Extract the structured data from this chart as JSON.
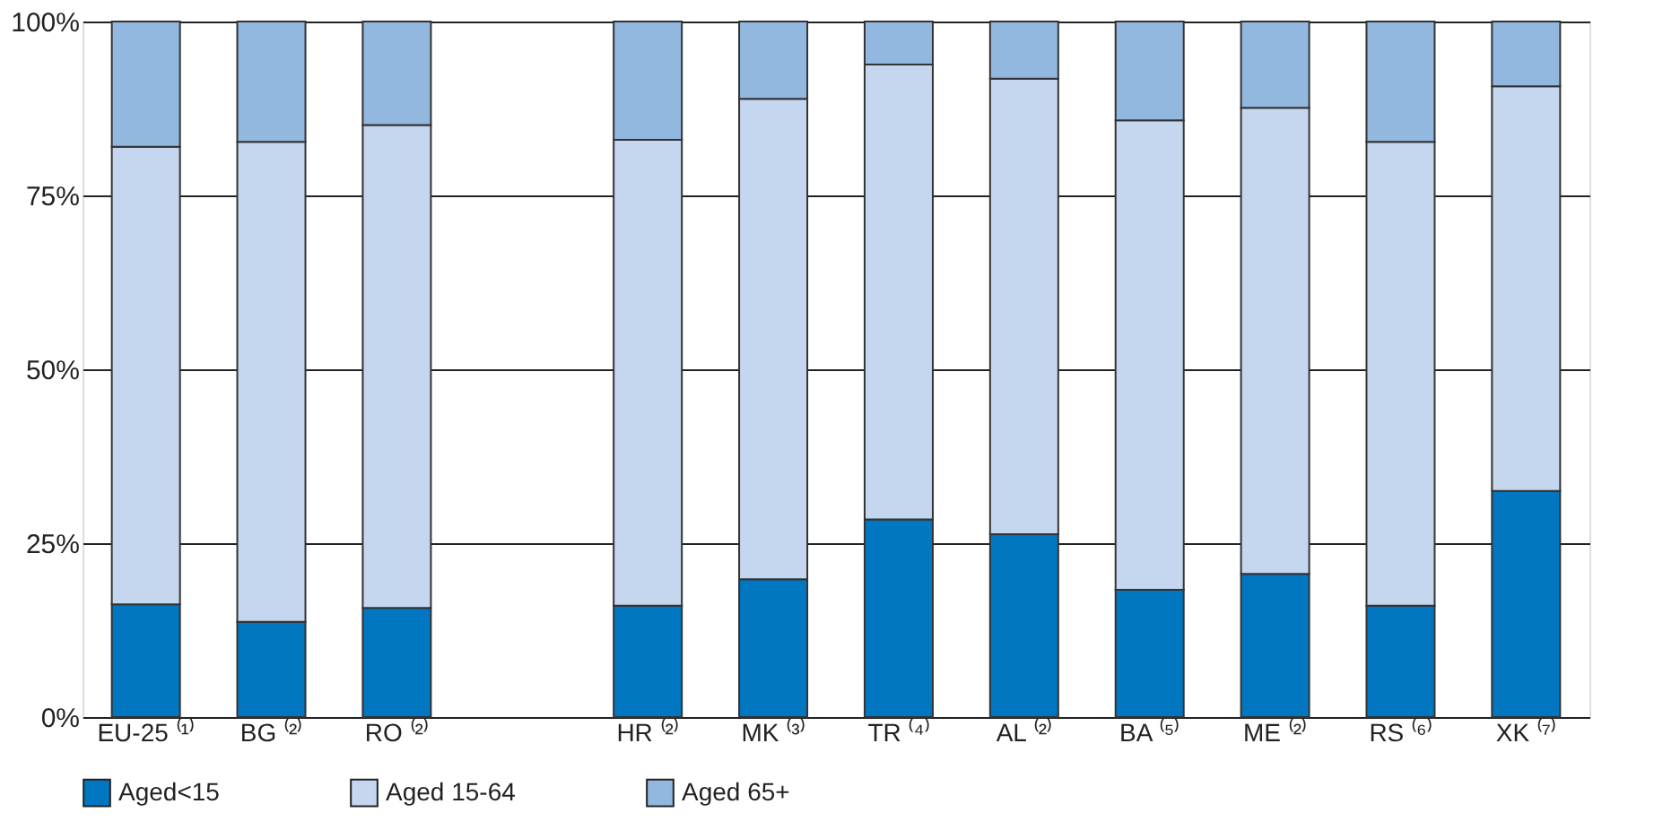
{
  "chart_data": {
    "type": "bar",
    "stacked": true,
    "categories": [
      "EU-25 ⁽¹⁾",
      "BG ⁽²⁾",
      "RO ⁽²⁾",
      null,
      "HR ⁽²⁾",
      "MK ⁽³⁾",
      "TR ⁽⁴⁾",
      "AL ⁽²⁾",
      "BA ⁽⁵⁾",
      "ME ⁽²⁾",
      "RS ⁽⁶⁾",
      "XK ⁽⁷⁾"
    ],
    "series": [
      {
        "name": "Aged<15",
        "color": "#0077c0",
        "values": [
          16.2,
          13.7,
          15.7,
          null,
          16.0,
          19.8,
          28.4,
          26.3,
          18.3,
          20.6,
          16.0,
          32.5
        ]
      },
      {
        "name": "Aged 15-64",
        "color": "#c5d7ef",
        "values": [
          65.8,
          69.0,
          69.4,
          null,
          67.0,
          69.1,
          65.4,
          65.5,
          67.5,
          67.0,
          66.7,
          58.2
        ]
      },
      {
        "name": "Aged 65+",
        "color": "#93b8e0",
        "values": [
          18.0,
          17.3,
          14.9,
          null,
          17.0,
          11.1,
          6.2,
          8.2,
          14.2,
          12.4,
          17.3,
          9.3
        ]
      }
    ],
    "ylim": [
      0,
      100
    ],
    "yticks": [
      {
        "value": 0,
        "label": "0%"
      },
      {
        "value": 25,
        "label": "25%"
      },
      {
        "value": 50,
        "label": "50%"
      },
      {
        "value": 75,
        "label": "75%"
      },
      {
        "value": 100,
        "label": "100%"
      }
    ],
    "grid": "y",
    "legend": "bottom"
  }
}
